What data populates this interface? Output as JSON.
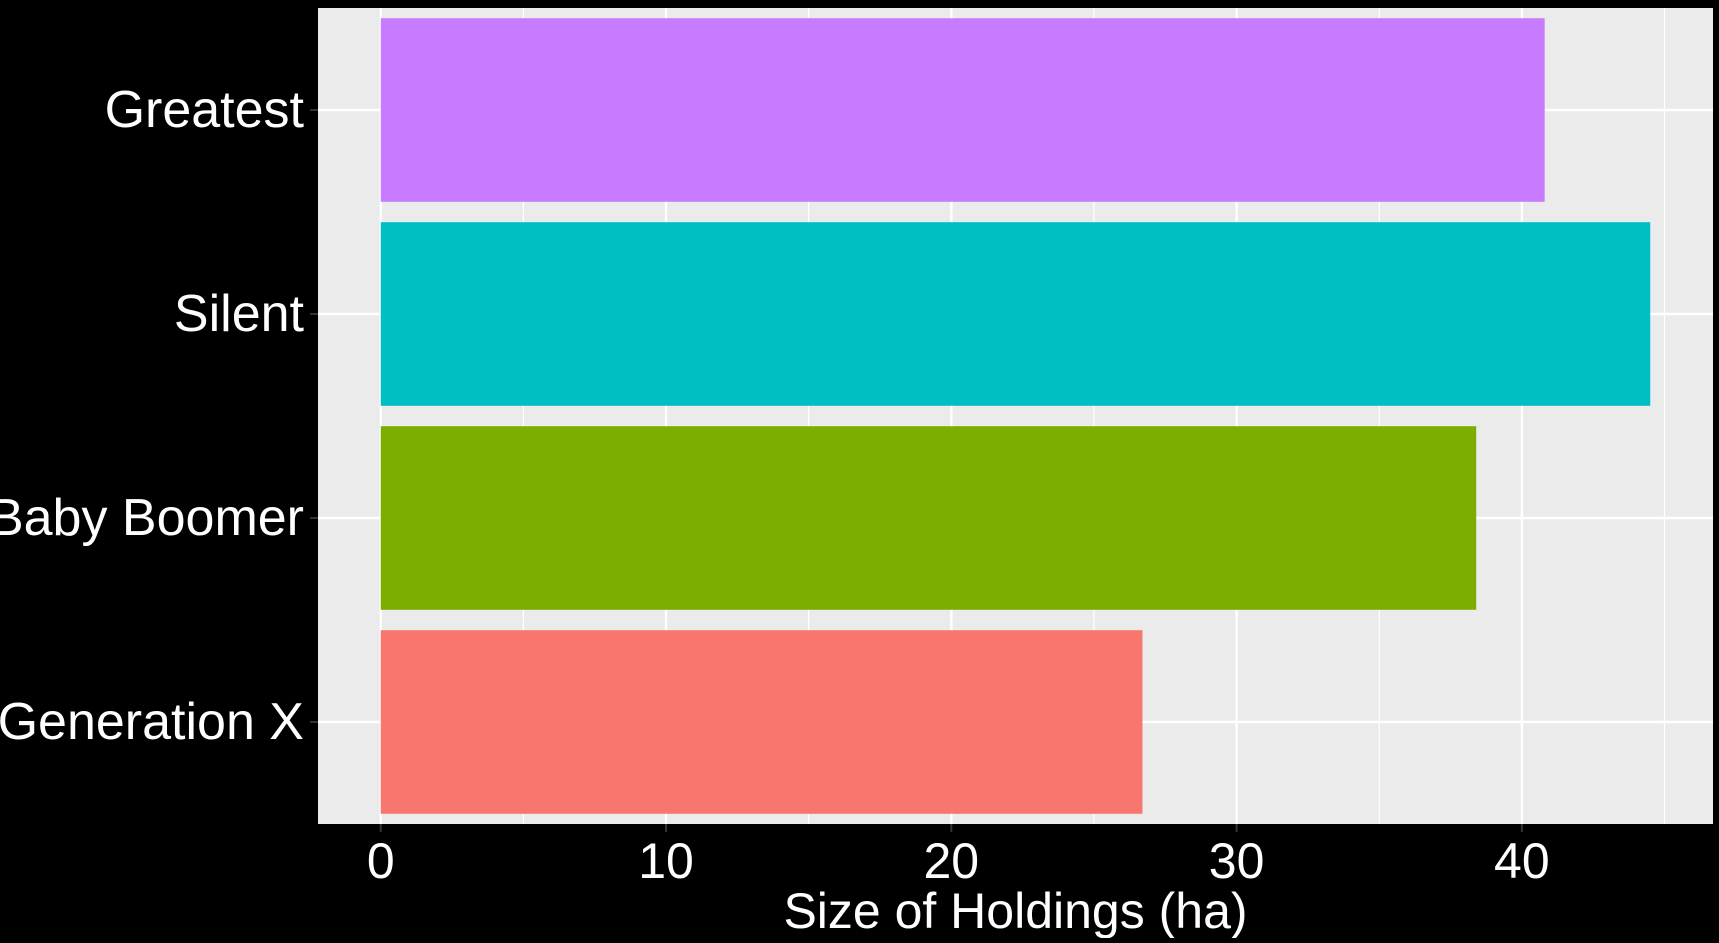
{
  "chart_data": {
    "type": "bar",
    "orientation": "horizontal",
    "categories": [
      "Greatest",
      "Silent",
      "Baby Boomer",
      "Generation X"
    ],
    "values": [
      40.8,
      44.5,
      38.4,
      26.7
    ],
    "colors": [
      "#C77CFF",
      "#00BFC4",
      "#7CAE00",
      "#F8766D"
    ],
    "title": "",
    "xlabel": "Size of Holdings (ha)",
    "ylabel": "",
    "xlim": [
      -2.2,
      46.7
    ],
    "x_ticks": [
      0,
      10,
      20,
      30,
      40
    ],
    "x_tick_labels": [
      "0",
      "10",
      "20",
      "30",
      "40"
    ],
    "x_minor_ticks": [
      5,
      15,
      25,
      35,
      45
    ],
    "grid": true,
    "legend": "none",
    "panel_background": "#EBEBEB",
    "background": "#000000",
    "gridline_color": "#FFFFFF",
    "text_color": "#FFFFFF"
  }
}
